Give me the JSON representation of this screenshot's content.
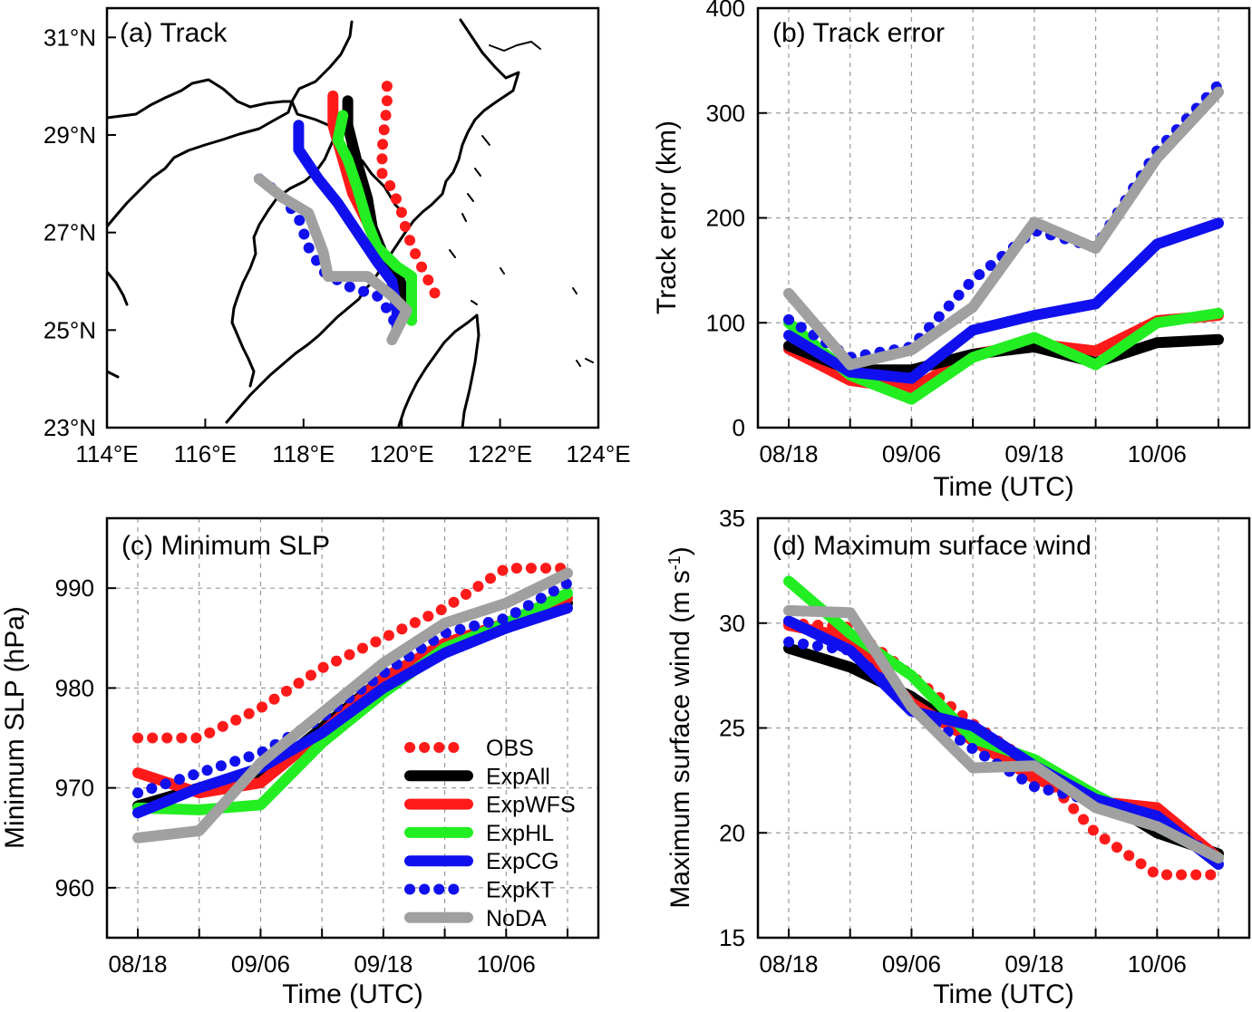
{
  "styles": {
    "OBS": {
      "color": "#ff1a1a",
      "dashed": true
    },
    "ExpAll": {
      "color": "#000000",
      "dashed": false
    },
    "ExpWFS": {
      "color": "#ff1a1a",
      "dashed": false
    },
    "ExpHL": {
      "color": "#22ee22",
      "dashed": false
    },
    "ExpCG": {
      "color": "#1010ee",
      "dashed": false
    },
    "ExpKT": {
      "color": "#1010ee",
      "dashed": true
    },
    "NoDA": {
      "color": "#a0a0a0",
      "dashed": false
    }
  },
  "legend": [
    "OBS",
    "ExpAll",
    "ExpWFS",
    "ExpHL",
    "ExpCG",
    "ExpKT",
    "NoDA"
  ],
  "chart_data": [
    {
      "id": "a",
      "type": "line",
      "title": "(a) Track",
      "xlim": [
        114,
        124
      ],
      "ylim": [
        23,
        31.6
      ],
      "x_ticks": [
        114,
        116,
        118,
        120,
        122,
        124
      ],
      "x_tick_labels": [
        "114°E",
        "116°E",
        "118°E",
        "120°E",
        "122°E",
        "124°E"
      ],
      "y_ticks": [
        23,
        25,
        27,
        29,
        31
      ],
      "y_tick_labels": [
        "23°N",
        "25°N",
        "27°N",
        "29°N",
        "31°N"
      ],
      "series": [
        {
          "name": "OBS",
          "points": [
            [
              119.7,
              30.0
            ],
            [
              119.7,
              29.6
            ],
            [
              119.65,
              29.2
            ],
            [
              119.6,
              28.7
            ],
            [
              119.6,
              28.2
            ],
            [
              119.8,
              27.9
            ],
            [
              120.0,
              27.4
            ],
            [
              120.1,
              27.0
            ],
            [
              120.3,
              26.5
            ],
            [
              120.5,
              26.1
            ],
            [
              120.7,
              25.7
            ]
          ]
        },
        {
          "name": "ExpWFS",
          "points": [
            [
              118.6,
              29.8
            ],
            [
              118.6,
              29.2
            ],
            [
              118.8,
              28.5
            ],
            [
              119.0,
              27.8
            ],
            [
              119.3,
              27.2
            ],
            [
              119.5,
              26.7
            ],
            [
              119.8,
              26.3
            ],
            [
              120.0,
              25.9
            ],
            [
              120.2,
              25.3
            ]
          ]
        },
        {
          "name": "ExpAll",
          "points": [
            [
              118.9,
              29.7
            ],
            [
              118.9,
              29.2
            ],
            [
              119.1,
              28.4
            ],
            [
              119.3,
              27.7
            ],
            [
              119.4,
              27.1
            ],
            [
              119.6,
              26.6
            ],
            [
              119.9,
              26.2
            ],
            [
              120.1,
              25.6
            ],
            [
              120.2,
              25.2
            ]
          ]
        },
        {
          "name": "ExpHL",
          "points": [
            [
              118.8,
              29.4
            ],
            [
              118.7,
              28.9
            ],
            [
              118.9,
              28.5
            ],
            [
              119.1,
              27.9
            ],
            [
              119.3,
              27.2
            ],
            [
              119.5,
              26.7
            ],
            [
              119.9,
              26.3
            ],
            [
              120.2,
              26.1
            ],
            [
              120.2,
              25.2
            ]
          ]
        },
        {
          "name": "ExpCG",
          "points": [
            [
              117.9,
              29.2
            ],
            [
              117.9,
              28.7
            ],
            [
              118.3,
              28.1
            ],
            [
              118.7,
              27.6
            ],
            [
              119.1,
              27.0
            ],
            [
              119.5,
              26.4
            ],
            [
              119.8,
              26.0
            ],
            [
              119.9,
              25.4
            ],
            [
              119.9,
              25.0
            ]
          ]
        },
        {
          "name": "ExpKT",
          "points": [
            [
              117.1,
              28.1
            ],
            [
              117.5,
              27.8
            ],
            [
              117.9,
              27.3
            ],
            [
              118.1,
              26.7
            ],
            [
              118.4,
              26.2
            ],
            [
              118.9,
              25.9
            ],
            [
              119.5,
              25.7
            ],
            [
              119.8,
              25.3
            ],
            [
              119.9,
              25.0
            ]
          ]
        },
        {
          "name": "NoDA",
          "points": [
            [
              117.1,
              28.1
            ],
            [
              117.6,
              27.7
            ],
            [
              118.1,
              27.4
            ],
            [
              118.4,
              26.6
            ],
            [
              118.5,
              26.1
            ],
            [
              119.3,
              26.1
            ],
            [
              119.8,
              25.7
            ],
            [
              120.1,
              25.4
            ],
            [
              119.8,
              24.8
            ]
          ]
        }
      ]
    },
    {
      "id": "b",
      "type": "line",
      "title": "(b) Track error",
      "xlabel": "Time (UTC)",
      "ylabel": "Track error (km)",
      "x_tick_labels": [
        "08/18",
        "09/06",
        "09/18",
        "10/06"
      ],
      "ylim": [
        0,
        400
      ],
      "y_ticks": [
        0,
        100,
        200,
        300,
        400
      ],
      "series": [
        {
          "name": "ExpWFS",
          "values": [
            75,
            45,
            37,
            70,
            80,
            73,
            102,
            107
          ]
        },
        {
          "name": "ExpAll",
          "values": [
            78,
            55,
            55,
            70,
            77,
            62,
            81,
            84
          ]
        },
        {
          "name": "ExpHL",
          "values": [
            100,
            50,
            27,
            67,
            86,
            60,
            100,
            109
          ]
        },
        {
          "name": "ExpCG",
          "values": [
            88,
            53,
            47,
            93,
            107,
            118,
            175,
            195
          ]
        },
        {
          "name": "ExpKT",
          "values": [
            103,
            67,
            77,
            141,
            188,
            172,
            264,
            327
          ]
        },
        {
          "name": "NoDA",
          "values": [
            128,
            60,
            74,
            115,
            196,
            171,
            257,
            320
          ]
        }
      ]
    },
    {
      "id": "c",
      "type": "line",
      "title": "(c) Minimum SLP",
      "xlabel": "Time (UTC)",
      "ylabel": "Minimum SLP (hPa)",
      "x_tick_labels": [
        "08/18",
        "09/06",
        "09/18",
        "10/06"
      ],
      "ylim": [
        955,
        997
      ],
      "y_ticks": [
        960,
        970,
        980,
        990
      ],
      "series": [
        {
          "name": "OBS",
          "values": [
            975,
            975,
            978,
            982,
            985,
            988,
            992,
            992
          ]
        },
        {
          "name": "ExpAll",
          "values": [
            968.2,
            970,
            971,
            976,
            981,
            984,
            986,
            988.5
          ]
        },
        {
          "name": "ExpWFS",
          "values": [
            971.5,
            969.5,
            970.5,
            975.5,
            981,
            984.5,
            986.5,
            989
          ]
        },
        {
          "name": "ExpHL",
          "values": [
            968,
            967.8,
            968.3,
            974.5,
            979.5,
            984,
            986.5,
            989.5
          ]
        },
        {
          "name": "ExpCG",
          "values": [
            967.5,
            970,
            972,
            975.5,
            980,
            983.5,
            986,
            988
          ]
        },
        {
          "name": "ExpKT",
          "values": [
            969.5,
            971.5,
            973.5,
            977,
            981.5,
            985.5,
            987,
            990.5
          ]
        },
        {
          "name": "NoDA",
          "values": [
            965,
            965.7,
            972.5,
            977.5,
            982.5,
            986.5,
            988.5,
            991.5
          ]
        }
      ]
    },
    {
      "id": "d",
      "type": "line",
      "title": "(d) Maximum surface wind",
      "xlabel": "Time (UTC)",
      "ylabel_main": "Maximum surface wind (m s",
      "ylabel_sup": "-1",
      "ylabel_end": ")",
      "x_tick_labels": [
        "08/18",
        "09/06",
        "09/18",
        "10/06"
      ],
      "ylim": [
        15,
        35
      ],
      "y_ticks": [
        15,
        20,
        25,
        30,
        35
      ],
      "series": [
        {
          "name": "OBS",
          "values": [
            30,
            29.8,
            27.5,
            25.2,
            23.2,
            20,
            18,
            18
          ]
        },
        {
          "name": "ExpAll",
          "values": [
            28.8,
            27.9,
            26.5,
            24.5,
            23.1,
            21.8,
            20,
            19
          ]
        },
        {
          "name": "ExpWFS",
          "values": [
            29.9,
            29.3,
            26.2,
            24.4,
            22.6,
            21.5,
            21.2,
            18.8
          ]
        },
        {
          "name": "ExpHL",
          "values": [
            32,
            29.5,
            27.5,
            24.5,
            23.5,
            21.8,
            20.3,
            18.8
          ]
        },
        {
          "name": "ExpCG",
          "values": [
            30.1,
            28.7,
            25.8,
            25.1,
            23.2,
            21.6,
            20.8,
            18.5
          ]
        },
        {
          "name": "ExpKT",
          "values": [
            29.1,
            28.7,
            26,
            24,
            22.2,
            21.5,
            20.5,
            18.8
          ]
        },
        {
          "name": "NoDA",
          "values": [
            30.6,
            30.5,
            26,
            23.1,
            23.2,
            21.2,
            20.3,
            18.8
          ]
        }
      ]
    }
  ]
}
